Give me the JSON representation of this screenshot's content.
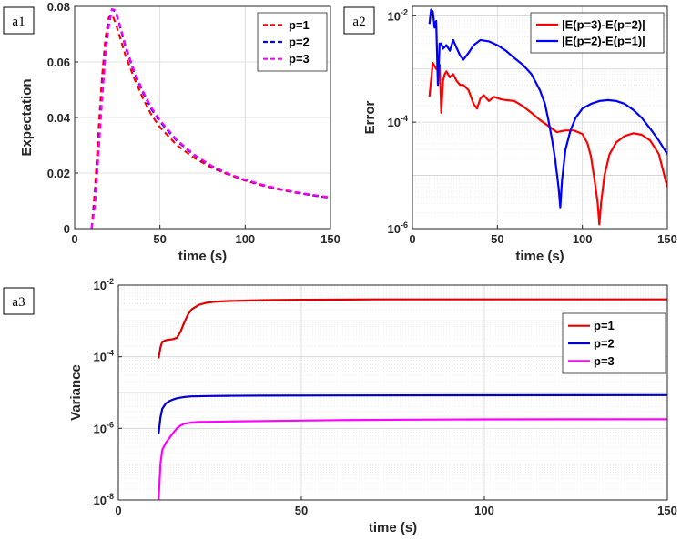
{
  "chart_data": [
    {
      "id": "a1",
      "panel_label": "a1",
      "type": "line",
      "xlabel": "time (s)",
      "ylabel": "Expectation",
      "xlim": [
        0,
        150
      ],
      "ylim": [
        0,
        0.08
      ],
      "xticks": [
        0,
        50,
        100,
        150
      ],
      "xtick_labels": [
        "0",
        "50",
        "100",
        "150"
      ],
      "yticks": [
        0,
        0.02,
        0.04,
        0.06,
        0.08
      ],
      "ytick_labels": [
        "0",
        "0.02",
        "0.04",
        "0.06",
        "0.08"
      ],
      "legend_position": "top-right",
      "series": [
        {
          "name": "p=1",
          "color": "#ff0000",
          "dash": true,
          "x": [
            10,
            12,
            14,
            16,
            18,
            20,
            22,
            24,
            26,
            30,
            35,
            40,
            45,
            50,
            60,
            70,
            80,
            90,
            100,
            110,
            120,
            130,
            140,
            150
          ],
          "y": [
            0,
            0.015,
            0.035,
            0.054,
            0.068,
            0.076,
            0.077,
            0.074,
            0.07,
            0.062,
            0.054,
            0.047,
            0.041,
            0.0365,
            0.03,
            0.0255,
            0.022,
            0.0195,
            0.0173,
            0.0155,
            0.0141,
            0.0129,
            0.0119,
            0.011
          ]
        },
        {
          "name": "p=2",
          "color": "#0000ff",
          "dash": true,
          "x": [
            10,
            12,
            14,
            16,
            18,
            20,
            22,
            24,
            26,
            30,
            35,
            40,
            45,
            50,
            60,
            70,
            80,
            90,
            100,
            110,
            120,
            130,
            140,
            150
          ],
          "y": [
            0,
            0.01,
            0.028,
            0.047,
            0.063,
            0.074,
            0.079,
            0.078,
            0.074,
            0.065,
            0.056,
            0.049,
            0.043,
            0.0385,
            0.0315,
            0.0265,
            0.0225,
            0.0197,
            0.0175,
            0.0157,
            0.0142,
            0.013,
            0.012,
            0.0111
          ]
        },
        {
          "name": "p=3",
          "color": "#ff00ff",
          "dash": true,
          "x": [
            10,
            12,
            14,
            16,
            18,
            20,
            22,
            24,
            26,
            30,
            35,
            40,
            45,
            50,
            60,
            70,
            80,
            90,
            100,
            110,
            120,
            130,
            140,
            150
          ],
          "y": [
            0,
            0.009,
            0.027,
            0.046,
            0.062,
            0.073,
            0.079,
            0.0785,
            0.0745,
            0.0655,
            0.0565,
            0.0495,
            0.0435,
            0.039,
            0.0318,
            0.0267,
            0.0227,
            0.0198,
            0.0176,
            0.0158,
            0.0143,
            0.0131,
            0.0121,
            0.0112
          ]
        }
      ]
    },
    {
      "id": "a2",
      "panel_label": "a2",
      "type": "line",
      "yscale": "log",
      "xlabel": "time (s)",
      "ylabel": "Error",
      "xlim": [
        0,
        150
      ],
      "ylim": [
        1e-06,
        0.015
      ],
      "xticks": [
        0,
        50,
        100,
        150
      ],
      "xtick_labels": [
        "0",
        "50",
        "100",
        "150"
      ],
      "yticks": [
        1e-06,
        0.0001,
        0.01
      ],
      "ytick_bases": [
        "10",
        "10",
        "10"
      ],
      "ytick_exps": [
        "-6",
        "-4",
        "-2"
      ],
      "legend_position": "top-right",
      "series": [
        {
          "name": "|E(p=3)-E(p=2)|",
          "color": "#ff0000",
          "dash": false,
          "x": [
            10,
            12,
            14,
            16,
            17,
            18,
            19,
            20,
            22,
            24,
            26,
            28,
            30,
            33,
            36,
            38,
            40,
            42,
            45,
            48,
            52,
            55,
            60,
            65,
            70,
            75,
            80,
            85,
            88,
            90,
            95,
            100,
            103,
            105,
            107,
            109,
            110,
            111,
            113,
            116,
            120,
            125,
            130,
            135,
            140,
            145,
            150
          ],
          "y": [
            0.0003,
            0.0013,
            0.001,
            0.0012,
            0.00015,
            0.0006,
            0.0008,
            0.0009,
            0.0007,
            0.0008,
            0.0006,
            0.0005,
            0.0005,
            0.0004,
            0.00022,
            0.00018,
            0.00028,
            0.00032,
            0.00025,
            0.0003,
            0.00027,
            0.00026,
            0.00025,
            0.0002,
            0.00015,
            0.00011,
            8.5e-05,
            6.5e-05,
            6.8e-05,
            7e-05,
            7e-05,
            6e-05,
            4e-05,
            2.3e-05,
            9e-06,
            3e-06,
            1.2e-06,
            3e-06,
            1e-05,
            2.5e-05,
            4.2e-05,
            5.5e-05,
            6.2e-05,
            5.8e-05,
            4.5e-05,
            2.5e-05,
            6e-06
          ]
        },
        {
          "name": "|E(p=2)-E(p=1)|",
          "color": "#0000ff",
          "dash": false,
          "x": [
            10,
            11,
            12,
            13,
            14,
            15,
            16,
            17,
            18,
            20,
            22,
            24,
            26,
            28,
            30,
            33,
            36,
            40,
            45,
            50,
            55,
            60,
            65,
            70,
            75,
            78,
            80,
            82,
            84,
            86,
            87,
            88,
            90,
            93,
            96,
            100,
            105,
            110,
            115,
            120,
            125,
            130,
            135,
            140,
            145,
            150
          ],
          "y": [
            0.007,
            0.013,
            0.012,
            0.006,
            0.008,
            0.0005,
            0.003,
            0.003,
            0.0024,
            0.0028,
            0.0022,
            0.0035,
            0.0025,
            0.0018,
            0.0015,
            0.002,
            0.0028,
            0.0035,
            0.0033,
            0.0028,
            0.0022,
            0.0016,
            0.0012,
            0.0008,
            0.0004,
            0.00022,
            0.00011,
            5e-05,
            2e-05,
            6e-06,
            2.5e-06,
            8e-06,
            3e-05,
            7e-05,
            0.00012,
            0.00018,
            0.00022,
            0.00025,
            0.00026,
            0.00025,
            0.00022,
            0.00017,
            0.00012,
            7.5e-05,
            4.5e-05,
            2.5e-05
          ]
        }
      ]
    },
    {
      "id": "a3",
      "panel_label": "a3",
      "type": "line",
      "yscale": "log",
      "xlabel": "time (s)",
      "ylabel": "Variance",
      "xlim": [
        0,
        150
      ],
      "ylim": [
        1e-08,
        0.01
      ],
      "xticks": [
        0,
        50,
        100,
        150
      ],
      "xtick_labels": [
        "0",
        "50",
        "100",
        "150"
      ],
      "yticks": [
        1e-08,
        1e-06,
        0.0001,
        0.01
      ],
      "ytick_bases": [
        "10",
        "10",
        "10",
        "10"
      ],
      "ytick_exps": [
        "-8",
        "-6",
        "-4",
        "-2"
      ],
      "legend_position": "right",
      "series": [
        {
          "name": "p=1",
          "color": "#dd0000",
          "dash": false,
          "x": [
            11,
            11.5,
            12,
            13,
            14,
            15,
            16,
            17,
            18,
            19,
            20,
            22,
            24,
            26,
            28,
            30,
            35,
            40,
            50,
            70,
            100,
            150
          ],
          "y": [
            9e-05,
            0.00018,
            0.00026,
            0.00029,
            0.0003,
            0.00031,
            0.00034,
            0.0005,
            0.0009,
            0.0015,
            0.0021,
            0.0028,
            0.0032,
            0.0034,
            0.0035,
            0.0036,
            0.0037,
            0.0038,
            0.0039,
            0.004,
            0.004,
            0.004
          ]
        },
        {
          "name": "p=2",
          "color": "#0000cc",
          "dash": false,
          "x": [
            11,
            11.5,
            12,
            13,
            14,
            15,
            16,
            17,
            18,
            20,
            25,
            30,
            40,
            60,
            100,
            150
          ],
          "y": [
            7e-07,
            2e-06,
            3.5e-06,
            5e-06,
            5.8e-06,
            6.4e-06,
            6.9e-06,
            7.2e-06,
            7.5e-06,
            7.8e-06,
            8e-06,
            8.1e-06,
            8.2e-06,
            8.3e-06,
            8.4e-06,
            8.5e-06
          ]
        },
        {
          "name": "p=3",
          "color": "#ff00ff",
          "dash": false,
          "x": [
            11,
            11.5,
            12,
            13,
            14,
            15,
            16,
            17,
            18,
            20,
            22,
            25,
            30,
            40,
            60,
            80,
            100,
            150
          ],
          "y": [
            1e-08,
            1e-07,
            2.5e-07,
            4e-07,
            5.5e-07,
            7.5e-07,
            1e-06,
            1.2e-06,
            1.35e-06,
            1.45e-06,
            1.5e-06,
            1.52e-06,
            1.55e-06,
            1.6e-06,
            1.7e-06,
            1.75e-06,
            1.78e-06,
            1.8e-06
          ]
        }
      ]
    }
  ]
}
